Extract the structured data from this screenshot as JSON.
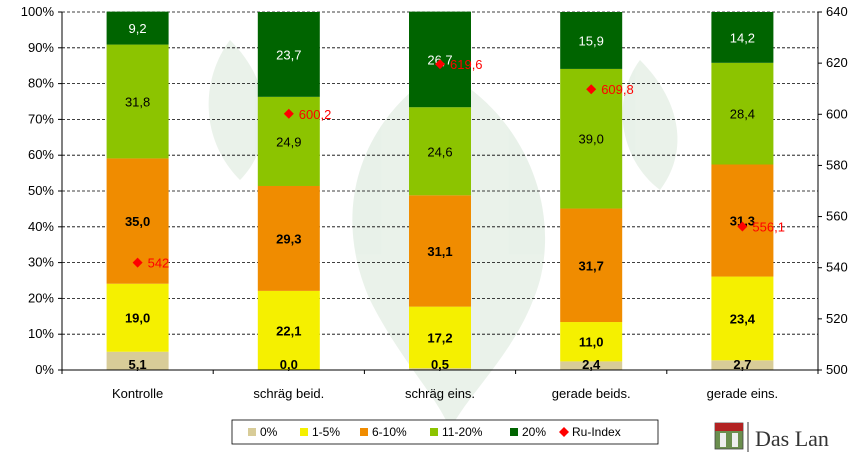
{
  "chart_data": {
    "type": "bar",
    "stacked": true,
    "categories": [
      "Kontrolle",
      "schräg beid.",
      "schräg eins.",
      "gerade beids.",
      "gerade eins."
    ],
    "series": [
      {
        "name": "0%",
        "color": "#d8cc98",
        "label_bold": true,
        "values": [
          5.1,
          0.0,
          0.5,
          2.4,
          2.7
        ]
      },
      {
        "name": "1-5%",
        "color": "#f5f000",
        "label_bold": true,
        "values": [
          19.0,
          22.1,
          17.2,
          11.0,
          23.4
        ]
      },
      {
        "name": "6-10%",
        "color": "#f08c00",
        "label_bold": true,
        "values": [
          35.0,
          29.3,
          31.1,
          31.7,
          31.3
        ]
      },
      {
        "name": "11-20%",
        "color": "#8cc400",
        "label_bold": false,
        "values": [
          31.8,
          24.9,
          24.6,
          39.0,
          28.4
        ]
      },
      {
        "name": "20%",
        "color": "#006400",
        "label_bold": false,
        "values": [
          9.2,
          23.7,
          26.7,
          15.9,
          14.2
        ]
      }
    ],
    "line_series": {
      "name": "Ru-Index",
      "color": "#ff0000",
      "axis": "right",
      "values": [
        542,
        600.2,
        619.6,
        609.8,
        556.1
      ],
      "labels": [
        "542",
        "600,2",
        "619,6",
        "609,8",
        "556,1"
      ]
    },
    "y_left": {
      "min": 0,
      "max": 100,
      "step": 10,
      "ticks": [
        "0%",
        "10%",
        "20%",
        "30%",
        "40%",
        "50%",
        "60%",
        "70%",
        "80%",
        "90%",
        "100%"
      ]
    },
    "y_right": {
      "min": 500,
      "max": 640,
      "step": 20,
      "ticks": [
        "500",
        "520",
        "540",
        "560",
        "580",
        "600",
        "620",
        "640"
      ]
    },
    "gridlines": true,
    "grid_style": "dashed",
    "legend": {
      "position": "bottom",
      "items": [
        "0%",
        "1-5%",
        "6-10%",
        "11-20%",
        "20%",
        "Ru-Index"
      ]
    }
  },
  "logo": {
    "text": "Das Lan"
  }
}
